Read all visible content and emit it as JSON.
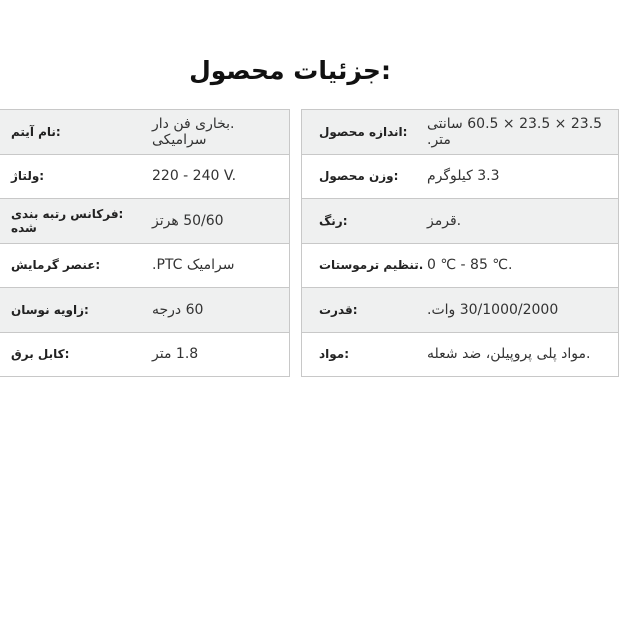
{
  "title": "جزئیات محصول:",
  "left_table": [
    {
      "label": ":نام آیتم",
      "value": ".بخاری فن دار سرامیکی"
    },
    {
      "label": ":ولتاژ",
      "value": "220 - 240 V."
    },
    {
      "label": ":فرکانس رتبه بندی شده",
      "value": "50/60 هرتز"
    },
    {
      "label": ":عنصر گرمایش",
      "value": "سرامیک PTC."
    },
    {
      "label": ":زاویه نوسان",
      "value": "60 درجه"
    },
    {
      "label": ":کابل برق",
      "value": "1.8 متر"
    }
  ],
  "right_table": [
    {
      "label": ":اندازه محصول",
      "value": "23.5 × 23.5 × 60.5 سانتی متر."
    },
    {
      "label": ":وزن محصول",
      "value": "3.3 کیلوگرم"
    },
    {
      "label": ":رنگ",
      "value": ".قرمز"
    },
    {
      "label": ".تنظیم ترموستات",
      "value": "0 ℃ - 85 ℃."
    },
    {
      "label": ":قدرت",
      "value": "30/1000/2000 وات."
    },
    {
      "label": ":مواد",
      "value": ".مواد پلی پروپیلن، ضد شعله"
    }
  ]
}
